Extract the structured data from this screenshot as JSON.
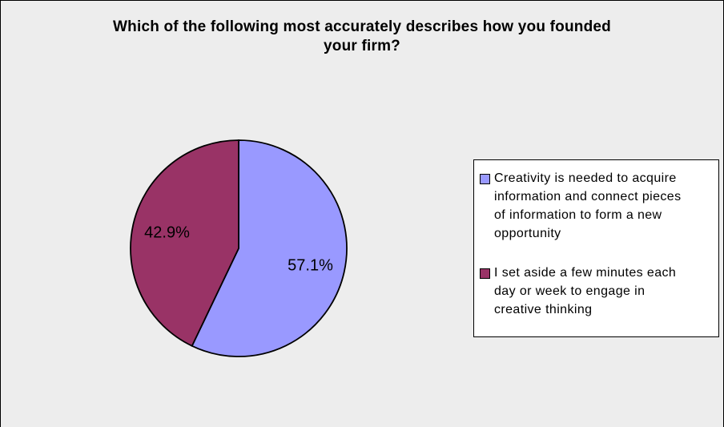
{
  "title_lines": [
    "Which of the following most accurately describes how you founded",
    "your firm?"
  ],
  "chart_data": {
    "type": "pie",
    "title": "Which of the following most accurately describes how you founded your firm?",
    "slices": [
      {
        "label": "Creativity is needed to acquire information and connect pieces of information to form a new opportunity",
        "value": 57.1,
        "display_label": "57.1%",
        "color": "#9999FF"
      },
      {
        "label": "I set aside a few minutes each day or week to engage in creative thinking",
        "value": 42.9,
        "display_label": "42.9%",
        "color": "#993366"
      }
    ],
    "start_angle_deg": 0,
    "direction": "clockwise",
    "data_labels": "percentage-inside",
    "legend_position": "right",
    "background_color": "#EDEDED",
    "legend_background_color": "#FFFFFF",
    "outline_color": "#000000"
  },
  "legend": {
    "items": [
      {
        "color": "#9999FF",
        "lines": [
          "Creativity is needed to acquire",
          "information and connect pieces",
          "of information to form a new",
          "opportunity"
        ]
      },
      {
        "color": "#993366",
        "lines": [
          "I set aside a few minutes each",
          "day or week to engage in",
          "creative thinking"
        ]
      }
    ]
  }
}
